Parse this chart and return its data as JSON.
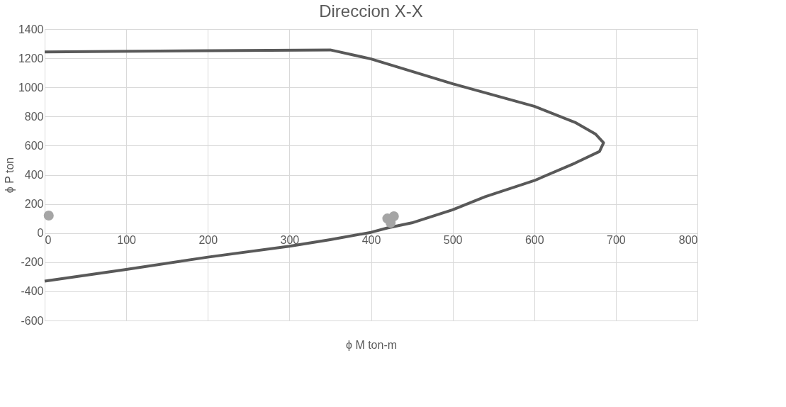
{
  "chart_data": {
    "type": "line",
    "title": "Direccion X-X",
    "xlabel": "ϕ M ton-m",
    "ylabel": "ϕ P ton",
    "xlim": [
      0,
      800
    ],
    "xticks": [
      0,
      100,
      200,
      300,
      400,
      500,
      600,
      700,
      800
    ],
    "ylim": [
      -600,
      1400
    ],
    "yticks": [
      -600,
      -400,
      -200,
      0,
      200,
      400,
      600,
      800,
      1000,
      1200,
      1400
    ],
    "grid": true,
    "legend": false,
    "series": [
      {
        "color": "#595959",
        "marker": "none",
        "x": [
          0,
          200,
          350,
          360,
          400,
          500,
          600,
          650,
          675,
          685,
          680,
          650,
          600,
          540,
          500,
          450,
          420,
          400,
          350,
          300,
          200,
          100,
          0
        ],
        "values": [
          1243,
          1252,
          1257,
          1245,
          1195,
          1025,
          870,
          760,
          680,
          620,
          560,
          480,
          360,
          250,
          160,
          70,
          35,
          5,
          -45,
          -90,
          -165,
          -250,
          -330
        ]
      },
      {
        "type": "scatter",
        "color": "#a5a5a5",
        "marker": "circle",
        "x": [
          5,
          420,
          428,
          424
        ],
        "values": [
          120,
          100,
          115,
          70
        ]
      }
    ]
  }
}
